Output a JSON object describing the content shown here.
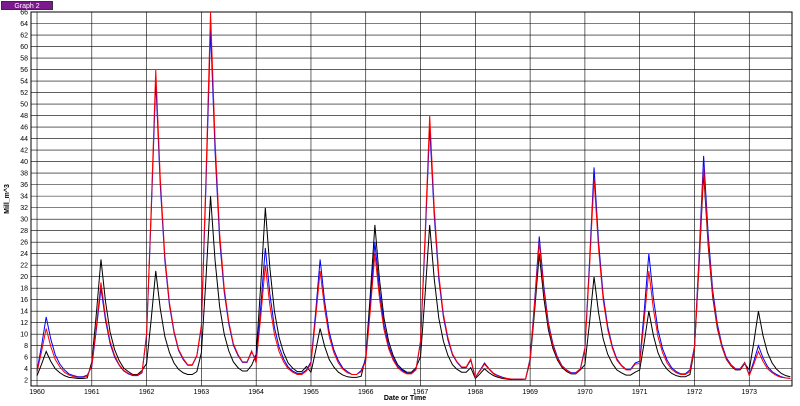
{
  "tab_label": "Graph 2",
  "chart_data": {
    "type": "line",
    "xlabel": "Date or Time",
    "ylabel": "Mill_m^3",
    "xlim": [
      1959.89,
      1973.78
    ],
    "ylim": [
      1,
      66
    ],
    "xticks": [
      1960,
      1961,
      1962,
      1963,
      1964,
      1965,
      1966,
      1967,
      1968,
      1969,
      1970,
      1971,
      1972,
      1973
    ],
    "yticks": [
      2,
      4,
      6,
      8,
      10,
      12,
      14,
      16,
      18,
      20,
      22,
      24,
      26,
      28,
      30,
      32,
      34,
      36,
      38,
      40,
      42,
      44,
      46,
      48,
      50,
      52,
      54,
      56,
      58,
      60,
      62,
      64,
      66
    ],
    "grid": true,
    "x": [
      1960,
      1960.083,
      1960.167,
      1960.25,
      1960.333,
      1960.417,
      1960.5,
      1960.583,
      1960.667,
      1960.75,
      1960.833,
      1960.917,
      1961,
      1961.083,
      1961.167,
      1961.25,
      1961.333,
      1961.417,
      1961.5,
      1961.583,
      1961.667,
      1961.75,
      1961.833,
      1961.917,
      1962,
      1962.083,
      1962.167,
      1962.25,
      1962.333,
      1962.417,
      1962.5,
      1962.583,
      1962.667,
      1962.75,
      1962.833,
      1962.917,
      1963,
      1963.083,
      1963.167,
      1963.25,
      1963.333,
      1963.417,
      1963.5,
      1963.583,
      1963.667,
      1963.75,
      1963.833,
      1963.917,
      1964,
      1964.083,
      1964.167,
      1964.25,
      1964.333,
      1964.417,
      1964.5,
      1964.583,
      1964.667,
      1964.75,
      1964.833,
      1964.917,
      1965,
      1965.083,
      1965.167,
      1965.25,
      1965.333,
      1965.417,
      1965.5,
      1965.583,
      1965.667,
      1965.75,
      1965.833,
      1965.917,
      1966,
      1966.083,
      1966.167,
      1966.25,
      1966.333,
      1966.417,
      1966.5,
      1966.583,
      1966.667,
      1966.75,
      1966.833,
      1966.917,
      1967,
      1967.083,
      1967.167,
      1967.25,
      1967.333,
      1967.417,
      1967.5,
      1967.583,
      1967.667,
      1967.75,
      1967.833,
      1967.917,
      1968,
      1968.083,
      1968.167,
      1968.25,
      1968.333,
      1968.417,
      1968.5,
      1968.583,
      1968.667,
      1968.75,
      1968.833,
      1968.917,
      1969,
      1969.083,
      1969.167,
      1969.25,
      1969.333,
      1969.417,
      1969.5,
      1969.583,
      1969.667,
      1969.75,
      1969.833,
      1969.917,
      1970,
      1970.083,
      1970.167,
      1970.25,
      1970.333,
      1970.417,
      1970.5,
      1970.583,
      1970.667,
      1970.75,
      1970.833,
      1970.917,
      1971,
      1971.083,
      1971.167,
      1971.25,
      1971.333,
      1971.417,
      1971.5,
      1971.583,
      1971.667,
      1971.75,
      1971.833,
      1971.917,
      1972,
      1972.083,
      1972.167,
      1972.25,
      1972.333,
      1972.417,
      1972.5,
      1972.583,
      1972.667,
      1972.75,
      1972.833,
      1972.917,
      1973,
      1973.083,
      1973.167,
      1973.25,
      1973.333,
      1973.417,
      1973.5,
      1973.583,
      1973.667,
      1973.75
    ],
    "series": [
      {
        "color": "#000000",
        "values": [
          2.8,
          4.8,
          7,
          5.3,
          4,
          3.3,
          2.8,
          2.5,
          2.4,
          2.3,
          2.3,
          2.4,
          5.2,
          13.6,
          23,
          15.7,
          10.4,
          7.3,
          5.4,
          4.1,
          3.5,
          3,
          3,
          3.7,
          4.9,
          12.5,
          21,
          14.4,
          9.6,
          6.8,
          5,
          3.9,
          3.3,
          3,
          3,
          3.5,
          6.8,
          19.6,
          34,
          22.8,
          14.8,
          10,
          7.1,
          5.2,
          4.2,
          3.6,
          3.6,
          4.6,
          6.5,
          18.5,
          32,
          21.5,
          14,
          9.5,
          6.8,
          5,
          4.1,
          3.5,
          3.5,
          4.4,
          3.4,
          7,
          11,
          7.9,
          5.6,
          4.3,
          3.4,
          2.9,
          2.6,
          2.5,
          2.5,
          2.7,
          6.1,
          16.9,
          29,
          19.6,
          12.8,
          8.8,
          6.3,
          4.7,
          3.9,
          3.4,
          3.4,
          4.2,
          6.1,
          16.9,
          29,
          19.6,
          12.8,
          8.8,
          6.3,
          4.7,
          3.9,
          3.4,
          3.4,
          4.2,
          2.3,
          3.1,
          4,
          3.3,
          2.8,
          2.5,
          2.3,
          2.2,
          2.1,
          2.1,
          2.1,
          2.2,
          5.3,
          14.1,
          24,
          16.3,
          10.8,
          7.5,
          5.5,
          4.2,
          3.5,
          3.1,
          3.1,
          3.8,
          4.7,
          11.9,
          20,
          13.7,
          9.2,
          6.5,
          4.9,
          3.8,
          3.3,
          2.9,
          2.9,
          3.4,
          3.8,
          8.6,
          14,
          9.8,
          6.8,
          5,
          3.9,
          3.2,
          2.8,
          2.6,
          2.6,
          3,
          7.4,
          21.8,
          38,
          25.4,
          16.4,
          11,
          7.8,
          5.6,
          4.5,
          3.8,
          3.8,
          4.9,
          3.8,
          8.6,
          14,
          9.8,
          6.8,
          5,
          3.9,
          3.2,
          2.8,
          2.6
        ]
      },
      {
        "color": "#0000ff",
        "values": [
          3.7,
          8,
          13,
          9.2,
          6.4,
          4.8,
          3.8,
          3.1,
          2.8,
          2.6,
          2.6,
          2.9,
          4.4,
          10.8,
          18,
          12.4,
          8.4,
          6,
          4.6,
          3.6,
          3.1,
          2.8,
          2.8,
          3.3,
          9.8,
          30.6,
          54,
          35.8,
          22.8,
          15,
          10.3,
          7.2,
          5.6,
          4.6,
          4.6,
          6.2,
          11.2,
          35.6,
          63,
          41.7,
          26.4,
          17.3,
          11.8,
          8.1,
          6.3,
          5.1,
          5.1,
          6.9,
          5.5,
          14.7,
          25,
          17,
          11.2,
          7.8,
          5.7,
          4.3,
          3.6,
          3.2,
          3.2,
          3.8,
          5.2,
          13.6,
          23,
          15.7,
          10.4,
          7.3,
          5.4,
          4.1,
          3.5,
          3,
          3,
          3.7,
          5.6,
          15.2,
          26,
          17.6,
          11.6,
          8,
          5.8,
          4.4,
          3.7,
          3.2,
          3.2,
          3.9,
          8.6,
          26.2,
          46,
          30.6,
          19.6,
          13,
          9,
          6.4,
          5.1,
          4.2,
          4.2,
          5.5,
          2.5,
          3.7,
          5,
          4,
          3.2,
          2.8,
          2.5,
          2.3,
          2.2,
          2.2,
          2.2,
          2.2,
          5.8,
          15.8,
          27,
          18.3,
          12,
          8.3,
          6,
          4.5,
          3.8,
          3.3,
          3.3,
          4,
          7.6,
          22.4,
          39,
          26,
          16.8,
          11.3,
          7.9,
          5.7,
          4.6,
          3.9,
          3.9,
          5,
          5.3,
          14.1,
          24,
          16.3,
          10.8,
          7.5,
          5.5,
          4.2,
          3.5,
          3.1,
          3.1,
          3.8,
          7.9,
          23.5,
          41,
          27.4,
          17.6,
          11.8,
          8.2,
          5.9,
          4.7,
          4,
          4,
          5.1,
          2.9,
          5.3,
          8,
          5.9,
          4.4,
          3.5,
          3,
          2.6,
          2.4,
          2.3
        ]
      },
      {
        "color": "#ff0000",
        "values": [
          3.4,
          7,
          11,
          7.9,
          5.6,
          4.3,
          3.4,
          2.9,
          2.6,
          2.5,
          2.5,
          2.7,
          4.6,
          11.4,
          19,
          13,
          8.8,
          6.3,
          4.7,
          3.7,
          3.2,
          2.9,
          2.9,
          3.4,
          10.1,
          31.7,
          56,
          37.1,
          23.6,
          15.5,
          10.6,
          7.4,
          5.8,
          4.7,
          4.7,
          6.3,
          11.6,
          37.2,
          66,
          43.6,
          27.6,
          18,
          12.2,
          8.4,
          6.5,
          5.2,
          5.2,
          7.1,
          5,
          13,
          22,
          15,
          10,
          7,
          5.2,
          4,
          3.4,
          3,
          3,
          3.6,
          4.9,
          12.5,
          21,
          14.4,
          9.6,
          6.8,
          5,
          3.9,
          3.3,
          3,
          3,
          3.5,
          5.3,
          14.1,
          24,
          16.3,
          10.8,
          7.5,
          5.5,
          4.2,
          3.5,
          3.1,
          3.1,
          3.8,
          8.9,
          27.3,
          48,
          31.9,
          20.4,
          13.5,
          9.4,
          6.6,
          5.2,
          4.3,
          4.3,
          5.7,
          2.5,
          3.6,
          4.8,
          3.9,
          3.1,
          2.7,
          2.4,
          2.3,
          2.2,
          2.2,
          2.2,
          2.2,
          5.6,
          15.2,
          26,
          17.6,
          11.6,
          8,
          5.8,
          4.4,
          3.7,
          3.2,
          3.2,
          3.9,
          7.3,
          21.3,
          37,
          24.8,
          16,
          10.8,
          7.6,
          5.5,
          4.5,
          3.8,
          3.8,
          4.8,
          4.9,
          12.5,
          21,
          14.4,
          9.6,
          6.8,
          5,
          3.9,
          3.3,
          3,
          3,
          3.5,
          7.6,
          22.4,
          39,
          26,
          16.8,
          11.3,
          7.9,
          5.7,
          4.6,
          3.9,
          3.9,
          5,
          2.8,
          4.8,
          7,
          5.3,
          4,
          3.3,
          2.8,
          2.5,
          2.4,
          2.3
        ]
      }
    ]
  }
}
